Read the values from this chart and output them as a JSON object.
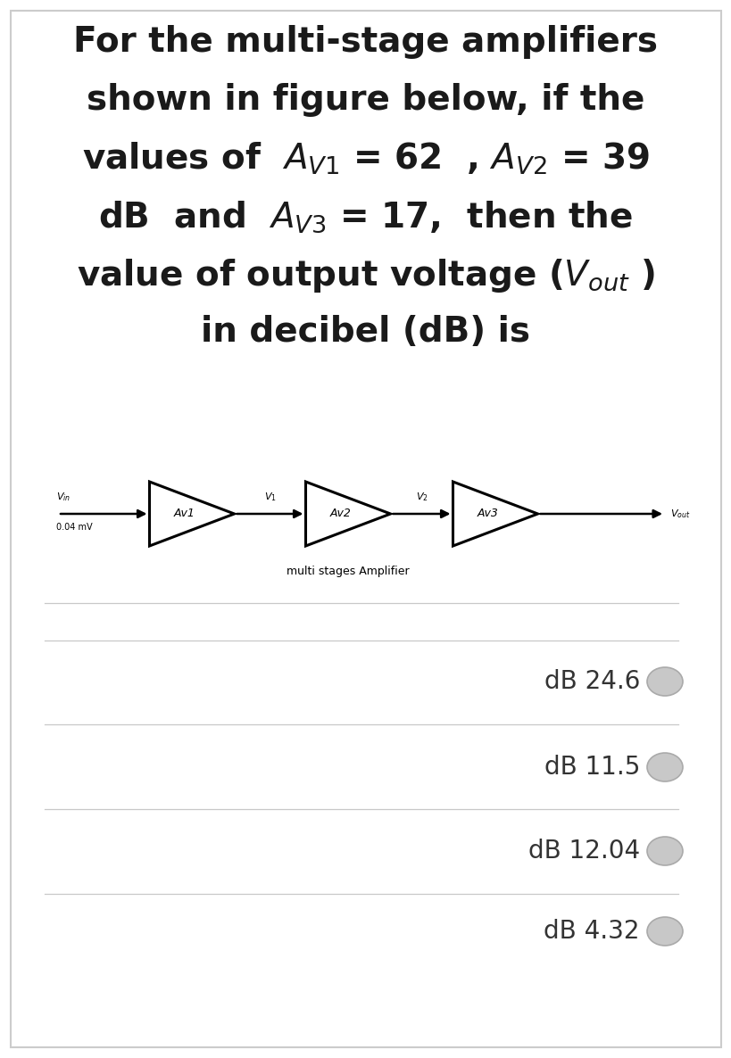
{
  "bg_color": "#ffffff",
  "border_color": "#cccccc",
  "title_line1": "For the multi-stage amplifiers",
  "title_line2": "shown in figure below, if the",
  "title_line3": "values of  $A_{V1}$ = 62  , $A_{V2}$ = 39",
  "title_line4": "dB  and  $A_{V3}$ = 17,  then the",
  "title_line5": "value of output voltage ($V_{out}$ )",
  "title_line6": "in decibel (dB) is",
  "title_fontsize": 28,
  "title_color": "#1a1a1a",
  "diagram_label": "multi stages Amplifier",
  "vin_label": "$V_{in}$",
  "vin_value": "0.04 mV",
  "vout_label": "$V_{out}$",
  "v1_label": "$V_1$",
  "v2_label": "$V_2$",
  "amp_labels": [
    "Av1",
    "Av2",
    "Av3"
  ],
  "choices": [
    "dB 24.6",
    "dB 11.5",
    "dB 12.04",
    "dB 4.32"
  ],
  "separator_color": "#c8c8c8",
  "radio_face_color": "#c8c8c8",
  "radio_edge_color": "#aaaaaa",
  "choice_fontsize": 20,
  "choice_color": "#333333",
  "diagram_fontsize": 9,
  "amp_lw": 2.2,
  "line_lw": 1.8
}
